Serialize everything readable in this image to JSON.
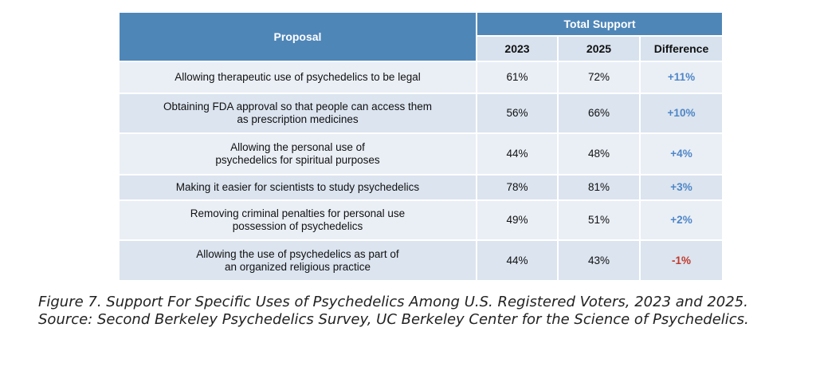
{
  "chart_data": {
    "type": "table",
    "header": {
      "proposal": "Proposal",
      "group": "Total Support",
      "year1": "2023",
      "year2": "2025",
      "difference": "Difference"
    },
    "rows": [
      {
        "lines": [
          "Allowing therapeutic use of psychedelics to be legal"
        ],
        "y2023": "61%",
        "y2025": "72%",
        "diff": "+11%"
      },
      {
        "lines": [
          "Obtaining FDA approval so that people can access them",
          "as prescription medicines"
        ],
        "y2023": "56%",
        "y2025": "66%",
        "diff": "+10%"
      },
      {
        "lines": [
          "Allowing the personal use of",
          "psychedelics for spiritual purposes"
        ],
        "y2023": "44%",
        "y2025": "48%",
        "diff": "+4%"
      },
      {
        "lines": [
          "Making it easier for scientists to study psychedelics"
        ],
        "y2023": "78%",
        "y2025": "81%",
        "diff": "+3%"
      },
      {
        "lines": [
          "Removing criminal penalties for personal use",
          "possession of psychedelics"
        ],
        "y2023": "49%",
        "y2025": "51%",
        "diff": "+2%"
      },
      {
        "lines": [
          "Allowing the use of psychedelics as part of",
          "an organized religious practice"
        ],
        "y2023": "44%",
        "y2025": "43%",
        "diff": "-1%"
      }
    ],
    "colors": {
      "positive": "#4f86c6",
      "negative": "#c0392b"
    }
  },
  "caption": "Figure 7. Support For Specific Uses of Psychedelics Among U.S. Registered Voters, 2023 and 2025. Source: Second Berkeley Psychedelics Survey, UC Berkeley Center for the Science of Psychedelics."
}
